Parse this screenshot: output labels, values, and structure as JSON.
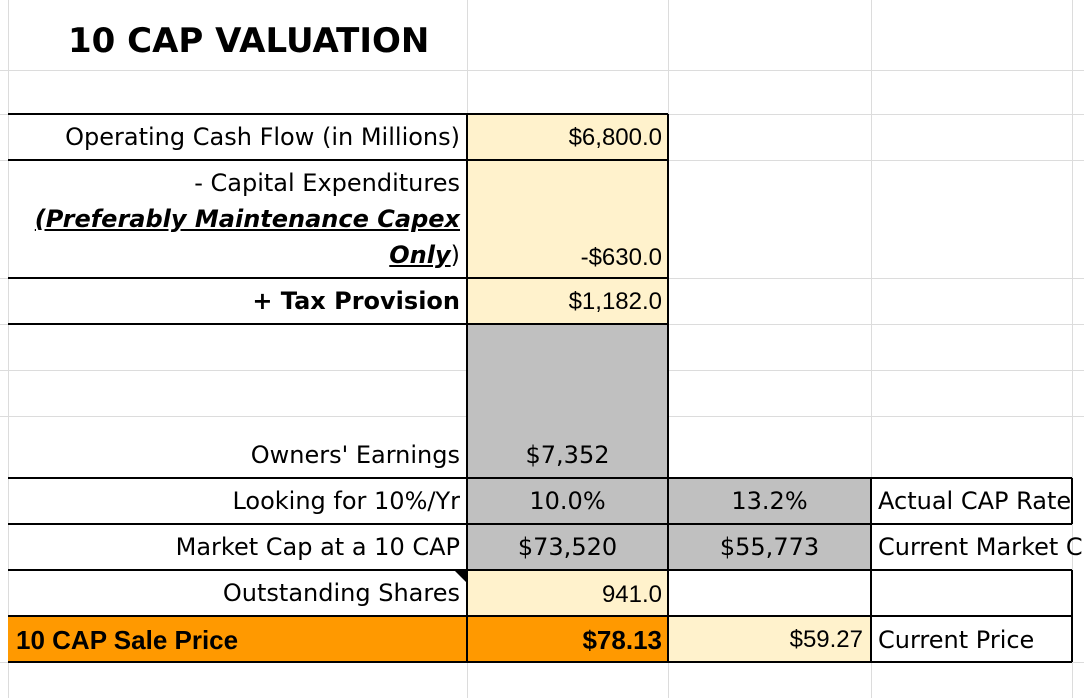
{
  "sheet": {
    "title": "10 CAP VALUATION",
    "rows": {
      "operating_cash_flow": {
        "label": "Operating Cash Flow (in Millions)",
        "value": "$6,800.0"
      },
      "capex": {
        "label_line1": "- Capital Expenditures",
        "label_line2": "(Preferably Maintenance Capex",
        "label_line3a": "Only",
        "label_line3b": ")",
        "value": "-$630.0"
      },
      "tax_provision": {
        "label": "+ Tax Provision",
        "value": "$1,182.0"
      },
      "owners_earnings": {
        "label": "Owners' Earnings",
        "value": "$7,352"
      },
      "looking_for": {
        "label": "Looking for 10%/Yr",
        "value": "10.0%",
        "actual_value": "13.2%",
        "actual_label": "Actual CAP Rate"
      },
      "market_cap": {
        "label": "Market Cap at a 10 CAP",
        "value": "$73,520",
        "current_value": "$55,773",
        "current_label": "Current Market C"
      },
      "outstanding_shares": {
        "label": "Outstanding Shares",
        "value": "941.0"
      },
      "sale_price": {
        "label": "10 CAP Sale Price",
        "value": "$78.13",
        "current_value": "$59.27",
        "current_label": "Current Price"
      }
    }
  },
  "colors": {
    "input_yellow": "#fff2cc",
    "calc_gray": "#c0c0c0",
    "highlight_orange": "#ff9900",
    "gridline": "#dcdcdc"
  }
}
